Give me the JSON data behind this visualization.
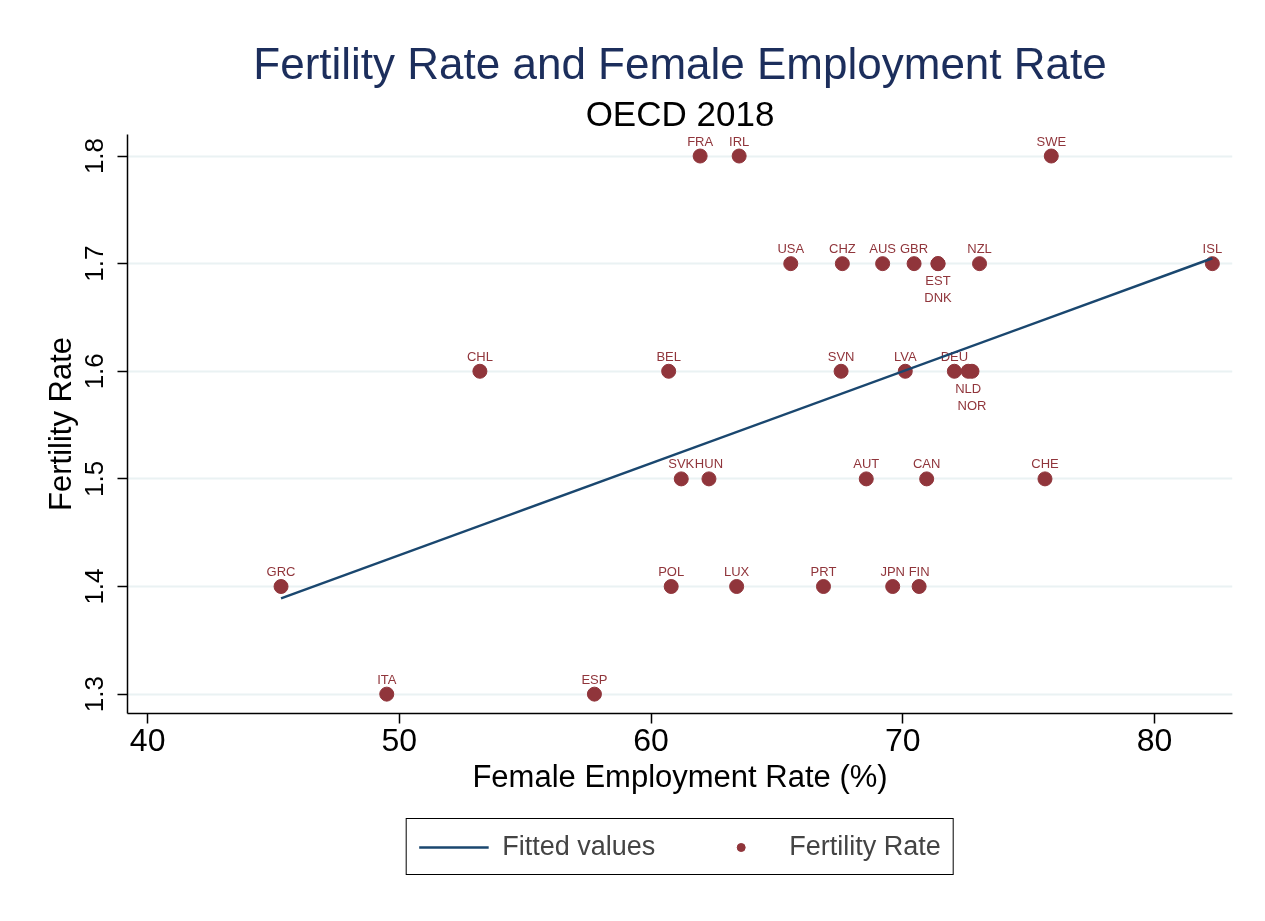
{
  "chart_data": {
    "type": "scatter",
    "title": "Fertility Rate and Female Employment Rate",
    "subtitle": "OECD 2018",
    "xlabel": "Female Employment Rate (%)",
    "ylabel": "Fertility Rate",
    "xlim": [
      39.2,
      83.1
    ],
    "ylim": [
      1.282,
      1.82
    ],
    "xticks": [
      40,
      50,
      60,
      70,
      80
    ],
    "yticks": [
      1.3,
      1.4,
      1.5,
      1.6,
      1.7,
      1.8
    ],
    "grid": "y",
    "legend": "bottom",
    "series": [
      {
        "name": "Fitted values",
        "type": "line",
        "color": "#1a476f",
        "line_style": "solid",
        "x": [
          45.3,
          82.3
        ],
        "values": [
          1.389,
          1.705
        ]
      },
      {
        "name": "Fertility Rate",
        "color": "#90353b",
        "marker": "circle",
        "x": [
          61.95,
          63.5,
          75.9,
          65.55,
          67.6,
          69.2,
          70.45,
          71.4,
          71.4,
          73.05,
          82.3,
          53.2,
          60.7,
          67.55,
          70.1,
          72.05,
          72.6,
          72.75,
          61.2,
          62.3,
          68.55,
          70.95,
          75.65,
          45.3,
          60.8,
          63.4,
          66.85,
          69.6,
          70.65,
          49.5,
          57.75
        ],
        "values": [
          1.8,
          1.8,
          1.8,
          1.7,
          1.7,
          1.7,
          1.7,
          1.7,
          1.7,
          1.7,
          1.7,
          1.6,
          1.6,
          1.6,
          1.6,
          1.6,
          1.6,
          1.6,
          1.5,
          1.5,
          1.5,
          1.5,
          1.5,
          1.4,
          1.4,
          1.4,
          1.4,
          1.4,
          1.4,
          1.3,
          1.3
        ],
        "value_labels": [
          "FRA",
          "IRL",
          "SWE",
          "USA",
          "CHZ",
          "AUS",
          "GBR",
          "EST",
          "DNK",
          "NZL",
          "ISL",
          "CHL",
          "BEL",
          "SVN",
          "LVA",
          "DEU",
          "NLD",
          "NOR",
          "SVK",
          "HUN",
          "AUT",
          "CAN",
          "CHE",
          "GRC",
          "POL",
          "LUX",
          "PRT",
          "JPN",
          "FIN",
          "ITA",
          "ESP"
        ]
      }
    ]
  }
}
